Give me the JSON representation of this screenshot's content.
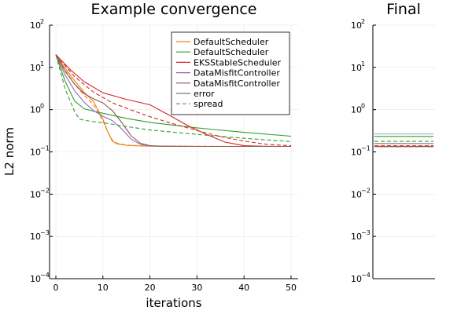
{
  "chart_data": [
    {
      "type": "line",
      "title": "Example convergence",
      "xlabel": "iterations",
      "ylabel": "L2 norm",
      "xlim": [
        0,
        50
      ],
      "ylim": [
        0.0001,
        100
      ],
      "yscale": "log",
      "grid": true,
      "legend_position": "top-right",
      "x_ticks": [
        "0",
        "10",
        "20",
        "30",
        "40",
        "50"
      ],
      "y_ticks": [
        {
          "base": "10",
          "exp": "2"
        },
        {
          "base": "10",
          "exp": "1"
        },
        {
          "base": "10",
          "exp": "0"
        },
        {
          "base": "10",
          "exp": "−1"
        },
        {
          "base": "10",
          "exp": "−2"
        },
        {
          "base": "10",
          "exp": "−3"
        },
        {
          "base": "10",
          "exp": "−4"
        }
      ],
      "legend": [
        {
          "label": "DefaultScheduler",
          "color": "#f07f0f",
          "style": "solid"
        },
        {
          "label": "DefaultScheduler",
          "color": "#2ca02c",
          "style": "solid"
        },
        {
          "label": "EKSStableScheduler",
          "color": "#d62728",
          "style": "solid"
        },
        {
          "label": "DataMisfitController",
          "color": "#9467bd",
          "style": "solid"
        },
        {
          "label": "DataMisfitController",
          "color": "#8c564b",
          "style": "solid"
        },
        {
          "label": "error",
          "color": "#777777",
          "style": "solid"
        },
        {
          "label": "spread",
          "color": "#777777",
          "style": "dashed"
        }
      ],
      "series": [
        {
          "color": "#f07f0f",
          "style": "solid",
          "x": [
            0,
            2,
            4,
            6,
            8,
            10,
            11,
            12,
            13,
            15,
            18,
            22,
            30,
            40,
            50
          ],
          "y": [
            20,
            9.5,
            4.8,
            2.6,
            1.55,
            0.6,
            0.3,
            0.18,
            0.155,
            0.143,
            0.138,
            0.136,
            0.135,
            0.135,
            0.135
          ]
        },
        {
          "color": "#f07f0f",
          "style": "dashed",
          "x": [
            0,
            2,
            4,
            6,
            8,
            10,
            11,
            12,
            13,
            15,
            18,
            22,
            30,
            40,
            50
          ],
          "y": [
            20,
            8.5,
            4.0,
            2.2,
            1.3,
            0.55,
            0.3,
            0.19,
            0.16,
            0.145,
            0.139,
            0.137,
            0.136,
            0.135,
            0.135
          ]
        },
        {
          "color": "#2ca02c",
          "style": "solid",
          "x": [
            0,
            2,
            4,
            6,
            8,
            10,
            15,
            20,
            30,
            40,
            50
          ],
          "y": [
            20,
            4.6,
            1.6,
            1.05,
            0.92,
            0.82,
            0.62,
            0.5,
            0.37,
            0.29,
            0.235
          ]
        },
        {
          "color": "#2ca02c",
          "style": "dashed",
          "x": [
            0,
            2,
            4,
            5,
            6,
            8,
            10,
            15,
            20,
            30,
            40,
            50
          ],
          "y": [
            20,
            3.0,
            0.9,
            0.6,
            0.56,
            0.52,
            0.49,
            0.4,
            0.33,
            0.26,
            0.21,
            0.175
          ]
        },
        {
          "color": "#d62728",
          "style": "solid",
          "x": [
            0,
            3,
            6,
            10,
            15,
            20,
            24,
            28,
            32,
            36,
            40,
            44,
            48,
            50
          ],
          "y": [
            20,
            9,
            4.6,
            2.5,
            1.75,
            1.3,
            0.75,
            0.42,
            0.26,
            0.17,
            0.14,
            0.136,
            0.135,
            0.135
          ]
        },
        {
          "color": "#d62728",
          "style": "dashed",
          "x": [
            0,
            4,
            8,
            12,
            16,
            20,
            25,
            30,
            35,
            40,
            45,
            50
          ],
          "y": [
            20,
            6,
            2.6,
            1.45,
            0.98,
            0.68,
            0.46,
            0.32,
            0.23,
            0.18,
            0.15,
            0.14
          ]
        },
        {
          "color": "#9467bd",
          "style": "solid",
          "x": [
            0,
            2,
            4,
            6,
            8,
            10,
            12,
            14,
            16,
            18,
            20,
            22,
            25,
            30,
            40,
            50
          ],
          "y": [
            20,
            6.5,
            2.8,
            1.5,
            0.95,
            0.7,
            0.55,
            0.35,
            0.2,
            0.15,
            0.138,
            0.136,
            0.135,
            0.135,
            0.135,
            0.135
          ]
        },
        {
          "color": "#8c564b",
          "style": "solid",
          "x": [
            0,
            2,
            4,
            6,
            8,
            10,
            12,
            14,
            16,
            18,
            20,
            22,
            25,
            30,
            40,
            50
          ],
          "y": [
            20,
            8,
            4.0,
            2.4,
            1.8,
            1.45,
            0.95,
            0.5,
            0.24,
            0.16,
            0.14,
            0.137,
            0.136,
            0.135,
            0.135,
            0.135
          ]
        }
      ]
    },
    {
      "type": "line",
      "title": "Final",
      "yscale": "log",
      "ylim": [
        0.0001,
        100
      ],
      "grid": true,
      "y_ticks": [
        {
          "base": "10",
          "exp": "2"
        },
        {
          "base": "10",
          "exp": "1"
        },
        {
          "base": "10",
          "exp": "0"
        },
        {
          "base": "10",
          "exp": "−1"
        },
        {
          "base": "10",
          "exp": "−2"
        },
        {
          "base": "10",
          "exp": "−3"
        },
        {
          "base": "10",
          "exp": "−4"
        }
      ],
      "levels": [
        {
          "color": "#9ab8c8",
          "style": "solid",
          "value": 0.265
        },
        {
          "color": "#2ca02c",
          "style": "solid",
          "value": 0.232
        },
        {
          "color": "#2ca02c",
          "style": "dashed",
          "value": 0.178
        },
        {
          "color": "#777777",
          "style": "solid",
          "value": 0.158
        },
        {
          "color": "#d62728",
          "style": "dashed",
          "value": 0.14
        },
        {
          "color": "#d62728",
          "style": "solid",
          "value": 0.135
        },
        {
          "color": "#8c564b",
          "style": "solid",
          "value": 0.133
        }
      ]
    }
  ]
}
